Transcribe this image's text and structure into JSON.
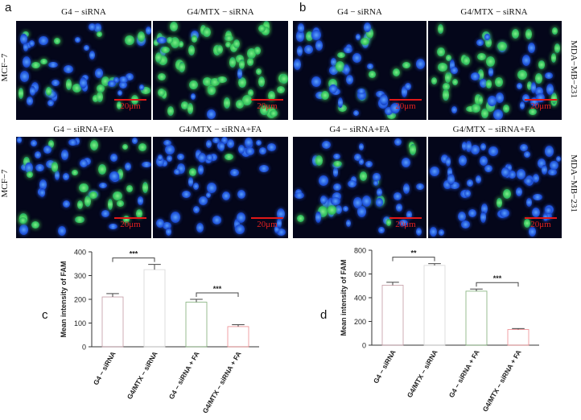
{
  "panel_labels": {
    "a": "a",
    "b": "b",
    "c": "c",
    "d": "d"
  },
  "cell_lines": {
    "left_top": "MCF−7",
    "left_bottom": "MCF−7",
    "right_top": "MDA−MB−231",
    "right_bottom": "MDA−MB−231"
  },
  "images": [
    {
      "title": "G4 − siRNA",
      "scale": "20μm",
      "density": 0.55,
      "green": 0.35
    },
    {
      "title": "G4/MTX − siRNA",
      "scale": "20μm",
      "density": 0.75,
      "green": 0.85
    },
    {
      "title": "G4 − siRNA",
      "scale": "20μm",
      "density": 0.45,
      "green": 0.25
    },
    {
      "title": "G4/MTX − siRNA",
      "scale": "20μm",
      "density": 0.7,
      "green": 0.6
    },
    {
      "title": "G4 − siRNA+FA",
      "scale": "20μm",
      "density": 0.6,
      "green": 0.5
    },
    {
      "title": "G4/MTX − siRNA+FA",
      "scale": "20μm",
      "density": 0.55,
      "green": 0.05
    },
    {
      "title": "G4 − siRNA+FA",
      "scale": "20μm",
      "density": 0.55,
      "green": 0.2
    },
    {
      "title": "G4/MTX − siRNA+FA",
      "scale": "20μm",
      "density": 0.6,
      "green": 0.08
    }
  ],
  "chart_data": [
    {
      "type": "bar",
      "panel": "c",
      "categories": [
        "G4 − siRNA",
        "G4/MTX − siRNA",
        "G4 − siRNA + FA",
        "G4/MTX − siRNA + FA"
      ],
      "values": [
        210,
        325,
        188,
        85
      ],
      "errors": [
        14,
        22,
        12,
        8
      ],
      "ylabel": "Mean intensity of FAM",
      "ylim": [
        0,
        400
      ],
      "yticks": [
        0,
        100,
        200,
        300,
        400
      ],
      "significance": [
        {
          "from": 0,
          "to": 1,
          "label": "***"
        },
        {
          "from": 2,
          "to": 3,
          "label": "***"
        }
      ],
      "colors": [
        "#c39aa3",
        "#d6d6d6",
        "#7fae77",
        "#ee8a8e"
      ]
    },
    {
      "type": "bar",
      "panel": "d",
      "categories": [
        "G4 − siRNA",
        "G4/MTX − siRNA",
        "G4 − siRNA + FA",
        "G4/MTX − siRNA + FA"
      ],
      "values": [
        505,
        672,
        455,
        132
      ],
      "errors": [
        25,
        15,
        18,
        8
      ],
      "ylabel": "Mean intensity of FAM",
      "ylim": [
        0,
        800
      ],
      "yticks": [
        0,
        200,
        400,
        600,
        800
      ],
      "significance": [
        {
          "from": 0,
          "to": 1,
          "label": "**"
        },
        {
          "from": 2,
          "to": 3,
          "label": "***"
        }
      ],
      "colors": [
        "#c39aa3",
        "#d6d6d6",
        "#7fae77",
        "#ee8a8e"
      ]
    }
  ]
}
